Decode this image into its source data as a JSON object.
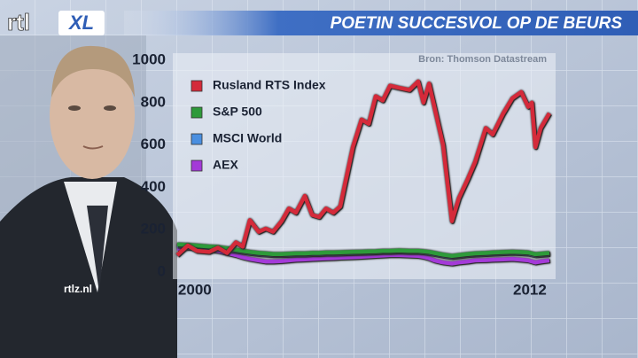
{
  "header": {
    "logo_left": "rtl",
    "logo_right": "XL"
  },
  "watermark": "rtlz.nl",
  "chart_data": {
    "type": "line",
    "title": "POETIN SUCCESVOL OP DE BEURS",
    "source": "Bron: Thomson Datastream",
    "x": [
      1999.37,
      1999.75,
      2000.07,
      2000.51,
      2000.83,
      2001.15,
      2001.47,
      2001.72,
      2001.97,
      2002.29,
      2002.54,
      2002.8,
      2003.11,
      2003.37,
      2003.62,
      2003.94,
      2004.2,
      2004.45,
      2004.7,
      2004.96,
      2005.21,
      2005.66,
      2005.97,
      2006.23,
      2006.48,
      2006.73,
      2006.99,
      2007.31,
      2007.69,
      2008.0,
      2008.19,
      2008.39,
      2008.58,
      2008.89,
      2009.21,
      2009.46,
      2009.78,
      2010.04,
      2010.42,
      2010.67,
      2011.05,
      2011.37,
      2011.69,
      2011.94,
      2012.07,
      2012.2,
      2012.39,
      2012.7
    ],
    "series": [
      {
        "name": "Rusland RTS Index",
        "color": "#d42a3a",
        "values": [
          80,
          125,
          100,
          95,
          115,
          90,
          140,
          120,
          245,
          190,
          205,
          190,
          240,
          300,
          280,
          360,
          270,
          260,
          300,
          280,
          310,
          590,
          720,
          700,
          830,
          810,
          880,
          870,
          860,
          900,
          800,
          890,
          780,
          600,
          240,
          350,
          440,
          520,
          680,
          650,
          750,
          820,
          850,
          780,
          800,
          590,
          680,
          750
        ]
      },
      {
        "name": "S&P 500",
        "color": "#2e9a3a",
        "values": [
          130,
          128,
          125,
          120,
          118,
          112,
          105,
          100,
          95,
          90,
          88,
          85,
          85,
          86,
          88,
          88,
          90,
          90,
          92,
          92,
          93,
          95,
          96,
          97,
          98,
          100,
          100,
          102,
          100,
          100,
          98,
          95,
          90,
          82,
          76,
          80,
          85,
          88,
          90,
          92,
          94,
          96,
          94,
          92,
          88,
          84,
          86,
          90
        ]
      },
      {
        "name": "MSCI World",
        "color": "#4a8fe0",
        "values": [
          125,
          123,
          120,
          115,
          112,
          106,
          100,
          95,
          90,
          85,
          83,
          80,
          80,
          81,
          83,
          83,
          85,
          85,
          87,
          87,
          88,
          90,
          91,
          92,
          93,
          95,
          95,
          97,
          95,
          95,
          93,
          90,
          85,
          77,
          71,
          75,
          80,
          83,
          85,
          87,
          89,
          91,
          89,
          87,
          83,
          79,
          81,
          85
        ]
      },
      {
        "name": "AEX",
        "color": "#a43ad8",
        "values": [
          110,
          115,
          112,
          105,
          100,
          90,
          80,
          70,
          62,
          55,
          50,
          50,
          52,
          55,
          58,
          60,
          62,
          63,
          65,
          66,
          68,
          70,
          72,
          74,
          76,
          78,
          80,
          80,
          78,
          76,
          72,
          65,
          55,
          45,
          40,
          45,
          50,
          55,
          56,
          58,
          60,
          62,
          58,
          55,
          50,
          45,
          50,
          55
        ]
      }
    ],
    "xlim": [
      1999.37,
      2012.7
    ],
    "xticks": [
      2000,
      2012
    ],
    "ylim": [
      0,
      1000
    ],
    "yticks": [
      0,
      200,
      400,
      600,
      800,
      1000
    ],
    "legend": "upper left"
  }
}
